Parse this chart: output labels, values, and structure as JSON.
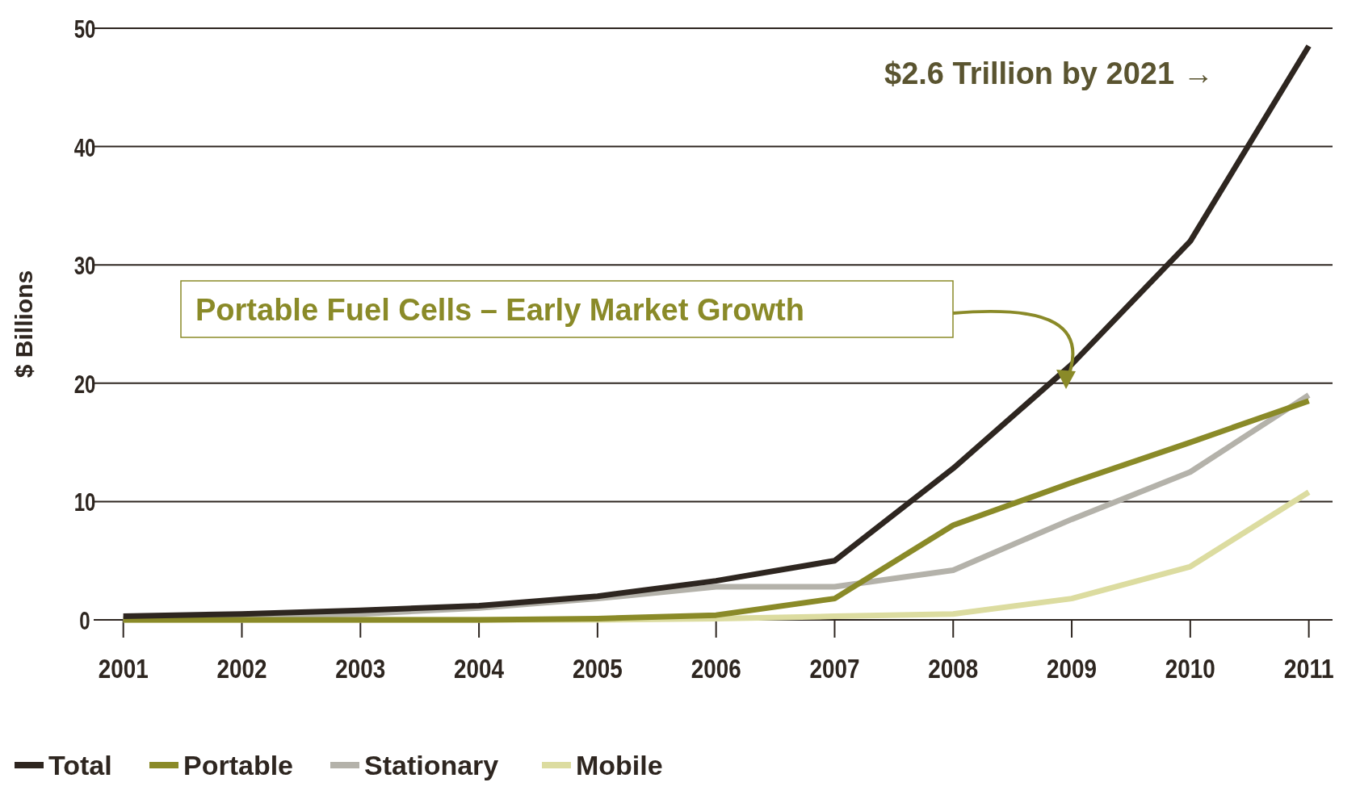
{
  "chart_data": {
    "type": "line",
    "ylabel": "$ Billions",
    "x": [
      2001,
      2002,
      2003,
      2004,
      2005,
      2006,
      2007,
      2008,
      2009,
      2010,
      2011
    ],
    "xlim": [
      2000.75,
      2011.2
    ],
    "xticks": [
      2001,
      2002,
      2003,
      2004,
      2005,
      2006,
      2007,
      2008,
      2009,
      2010,
      2011
    ],
    "ylim": [
      0,
      50
    ],
    "yticks": [
      0,
      10,
      20,
      30,
      40,
      50
    ],
    "grid": "y",
    "legend": "bottom left",
    "line_style": "solid",
    "series": [
      {
        "name": "Total",
        "color": "#2e2620",
        "values": [
          0.3,
          0.5,
          0.8,
          1.2,
          2.0,
          3.3,
          5.0,
          12.8,
          21.6,
          32,
          48.5
        ]
      },
      {
        "name": "Portable",
        "color": "#8a8a28",
        "values": [
          0,
          0,
          0,
          0,
          0.1,
          0.4,
          1.8,
          8.0,
          11.6,
          15,
          18.5
        ]
      },
      {
        "name": "Stationary",
        "color": "#b4b2aa",
        "values": [
          0.1,
          0.3,
          0.5,
          1.0,
          1.8,
          2.8,
          2.8,
          4.2,
          8.5,
          12.5,
          19
        ]
      },
      {
        "name": "Mobile",
        "color": "#dcdca0",
        "values": [
          0,
          0,
          0,
          0,
          0,
          0.1,
          0.3,
          0.5,
          1.8,
          4.5,
          10.8
        ]
      }
    ],
    "annotations": [
      "$2.6 Trillion by 2021 →",
      "Portable Fuel Cells – Early Market Growth"
    ]
  }
}
